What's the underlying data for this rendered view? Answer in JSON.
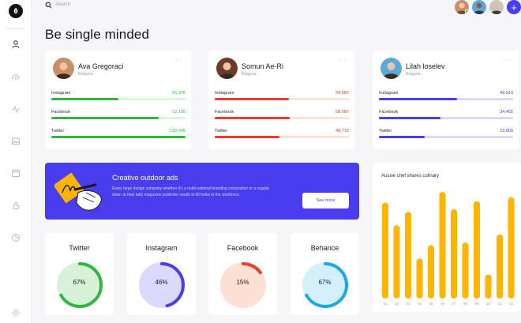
{
  "header": {
    "search_placeholder": "Search",
    "add_label": "+"
  },
  "page": {
    "title": "Be single minded"
  },
  "profiles": [
    {
      "name": "Ava Gregoraci",
      "country": "Bulgaria",
      "menu": "...",
      "accent": "#2eb83f",
      "track": "#dff3e1",
      "avatar_bg": "#c98f6a",
      "metrics": [
        {
          "label": "Instagram",
          "value": "65,376",
          "fill": 0.5
        },
        {
          "label": "Facebook",
          "value": "12,105",
          "fill": 0.8
        },
        {
          "label": "Twitter",
          "value": "132,645",
          "fill": 1.0
        }
      ]
    },
    {
      "name": "Somun Ae-Ri",
      "country": "Bulgaria",
      "menu": "...",
      "accent": "#ee3c30",
      "track": "#fde2d8",
      "avatar_bg": "#6b3b2c",
      "metrics": [
        {
          "label": "Instagram",
          "value": "34,587",
          "fill": 0.55
        },
        {
          "label": "Facebook",
          "value": "58,587",
          "fill": 0.56
        },
        {
          "label": "Twitter",
          "value": "48,718",
          "fill": 0.48
        }
      ]
    },
    {
      "name": "Lilah loselev",
      "country": "Bulgaria",
      "menu": "...",
      "accent": "#4a3df0",
      "track": "#dcdafc",
      "avatar_bg": "#5aa9d6",
      "metrics": [
        {
          "label": "Instagram",
          "value": "48,910",
          "fill": 0.58
        },
        {
          "label": "Facebook",
          "value": "34,455",
          "fill": 0.46
        },
        {
          "label": "Twitter",
          "value": "23,809",
          "fill": 0.34
        }
      ]
    }
  ],
  "banner": {
    "title": "Creative outdoor ads",
    "text": "Every large design company whether it's a multi-national branding corporation or a regular down at heel tatty magazine publisher needs to fill holes in the workforce.",
    "button": "See more"
  },
  "donuts": [
    {
      "title": "Twitter",
      "percent": 67,
      "label": "67%",
      "color": "#2eb83f",
      "bg": "#d8f2da"
    },
    {
      "title": "Instagram",
      "percent": 46,
      "label": "46%",
      "color": "#4a3df0",
      "bg": "#dcdafc"
    },
    {
      "title": "Facebook",
      "percent": 15,
      "label": "15%",
      "color": "#ee3c30",
      "bg": "#fde0d4"
    },
    {
      "title": "Behance",
      "percent": 67,
      "label": "67%",
      "color": "#1aa7ec",
      "bg": "#d4f1fb"
    }
  ],
  "chart_data": {
    "type": "bar",
    "title": "Aussie chef shares culinary",
    "categories": [
      "01",
      "02",
      "03",
      "04",
      "05",
      "06",
      "07",
      "08",
      "09",
      "10",
      "11",
      "12"
    ],
    "values": [
      72,
      55,
      65,
      30,
      40,
      80,
      67,
      42,
      73,
      18,
      48,
      76
    ],
    "ylim": [
      0,
      80
    ],
    "color": "#ffb400",
    "grid": false,
    "legend": "none"
  }
}
